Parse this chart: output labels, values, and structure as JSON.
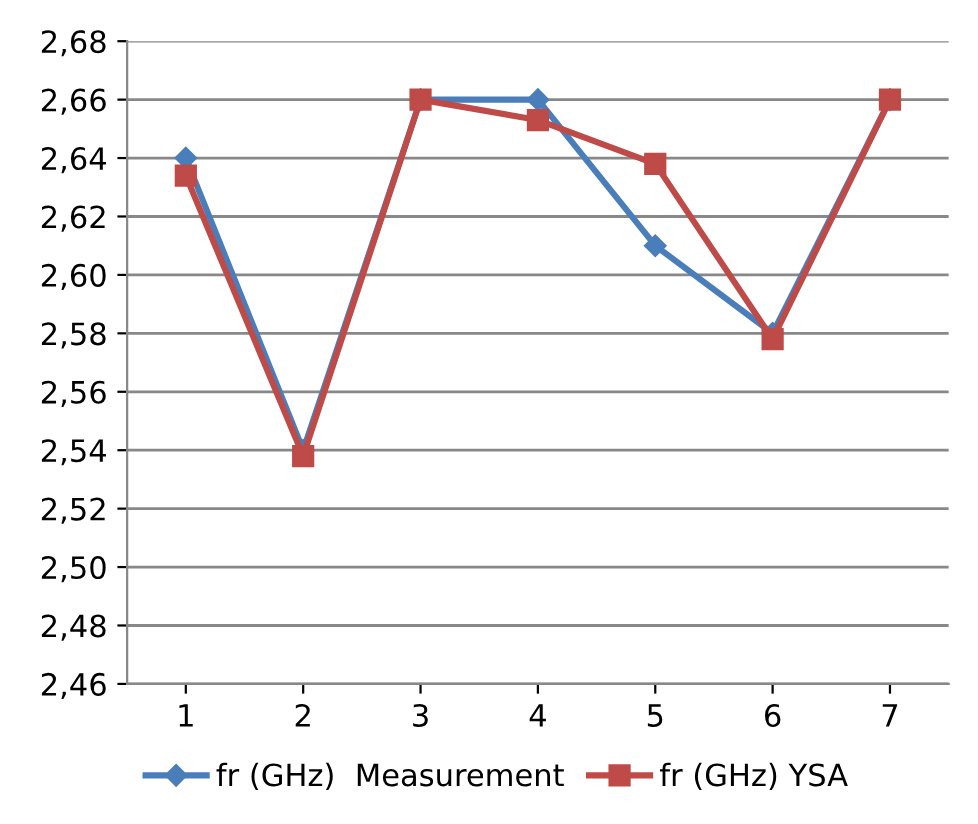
{
  "chart_data": {
    "type": "line",
    "categories": [
      "1",
      "2",
      "3",
      "4",
      "5",
      "6",
      "7"
    ],
    "series": [
      {
        "name": "fr (GHz)  Measurement",
        "color": "#4a7ebb",
        "marker": "diamond",
        "values": [
          2.64,
          2.54,
          2.66,
          2.66,
          2.61,
          2.58,
          2.66
        ]
      },
      {
        "name": "fr (GHz) YSA",
        "color": "#be4b48",
        "marker": "square",
        "values": [
          2.634,
          2.538,
          2.66,
          2.653,
          2.638,
          2.578,
          2.66
        ]
      }
    ],
    "ylim": [
      2.46,
      2.68
    ],
    "yticks": [
      {
        "value": 2.46,
        "label": "2,46"
      },
      {
        "value": 2.48,
        "label": "2,48"
      },
      {
        "value": 2.5,
        "label": "2,50"
      },
      {
        "value": 2.52,
        "label": "2,52"
      },
      {
        "value": 2.54,
        "label": "2,54"
      },
      {
        "value": 2.56,
        "label": "2,56"
      },
      {
        "value": 2.58,
        "label": "2,58"
      },
      {
        "value": 2.6,
        "label": "2,60"
      },
      {
        "value": 2.62,
        "label": "2,62"
      },
      {
        "value": 2.64,
        "label": "2,64"
      },
      {
        "value": 2.66,
        "label": "2,66"
      },
      {
        "value": 2.68,
        "label": "2,68"
      }
    ],
    "grid": "y",
    "legend": "bottom"
  }
}
